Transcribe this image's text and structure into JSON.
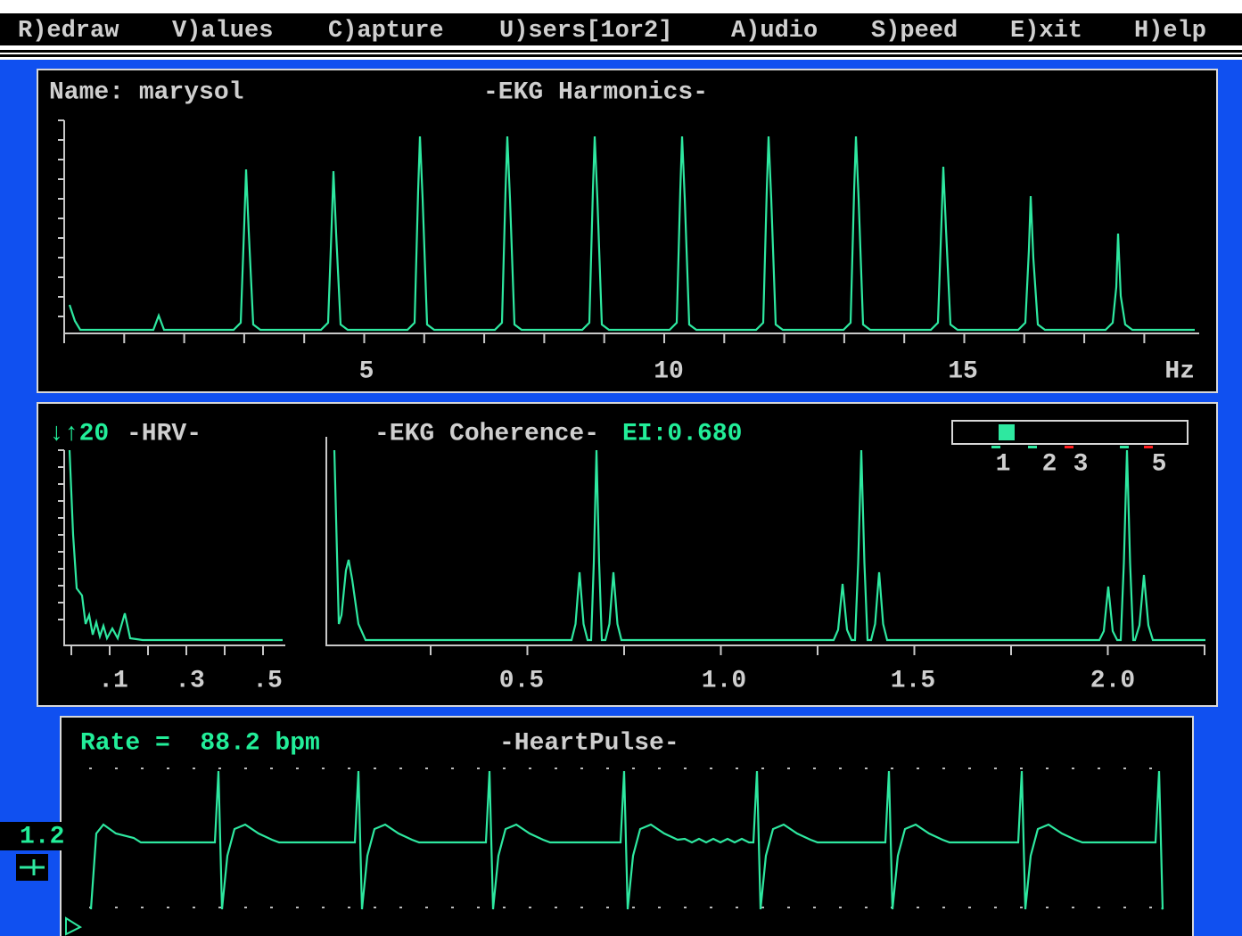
{
  "menu": {
    "items": [
      "R)edraw",
      "V)alues",
      "C)apture",
      "U)sers[1or2]",
      "A)udio",
      "S)peed",
      "E)xit",
      "H)elp"
    ]
  },
  "harmonics": {
    "name_label": "Name: marysol",
    "title": "-EKG Harmonics-",
    "x_labels": [
      "5",
      "10",
      "15",
      "Hz"
    ]
  },
  "coherence": {
    "hrv_label": "↓↑20",
    "hrv_title": "-HRV-",
    "title": "-EKG Coherence-",
    "ei": "EI:0.680",
    "hrv_x_labels": [
      ".1",
      ".3",
      ".5"
    ],
    "x_labels": [
      "0.5",
      "1.0",
      "1.5",
      "2.0"
    ],
    "legend_labels": [
      "1",
      "2",
      "3",
      "5"
    ]
  },
  "pulse": {
    "rate": "Rate =  88.2 bpm",
    "title": "-HeartPulse-",
    "scale": "1.2"
  }
}
